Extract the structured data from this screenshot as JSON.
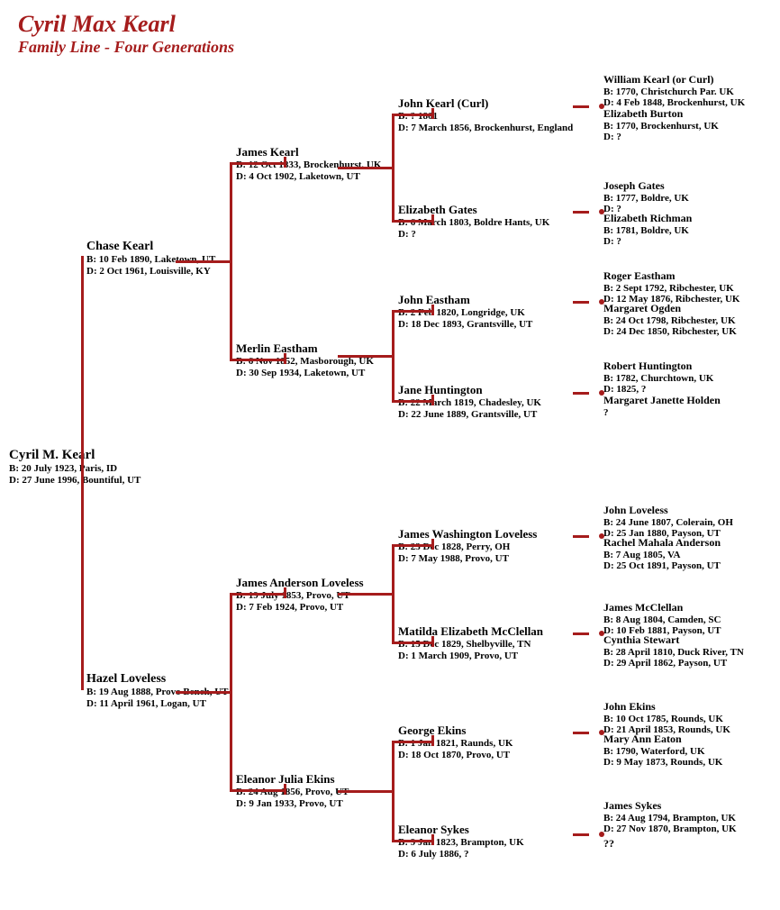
{
  "colors": {
    "accent": "#a51c1c",
    "text": "#000000",
    "bg": "#ffffff"
  },
  "title": {
    "main": "Cyril Max Kearl",
    "sub": "Family Line - Four Generations"
  },
  "tree": {
    "root": {
      "name": "Cyril M. Kearl",
      "birth": "B: 20 July 1923, Paris, ID",
      "death": "D: 27 June 1996, Bountiful, UT"
    },
    "parents": {
      "father": {
        "name": "Chase Kearl",
        "birth": "B: 10 Feb 1890, Laketown, UT",
        "death": "D: 2 Oct 1961, Louisville, KY"
      },
      "mother": {
        "name": "Hazel Loveless",
        "birth": "B: 19 Aug 1888, Provo Bench, UT",
        "death": "D: 11 April 1961, Logan, UT"
      }
    },
    "gp": {
      "pp": {
        "name": "James Kearl",
        "birth": "B: 12 Oct 1833, Brockenhurst, UK",
        "death": "D: 4 Oct 1902, Laketown, UT"
      },
      "pm": {
        "name": "Merlin Eastham",
        "birth": "B: 6 Nov 1852, Masborough, UK",
        "death": "D: 30  Sep 1934, Laketown, UT"
      },
      "mp": {
        "name": "James Anderson Loveless",
        "birth": "B: 19 July 1853, Provo, UT",
        "death": "D: 7 Feb 1924, Provo, UT"
      },
      "mm": {
        "name": "Eleanor Julia Ekins",
        "birth": "B: 24 Aug 1856, Provo, UT",
        "death": "D: 9 Jan 1933, Provo, UT"
      }
    },
    "ggp": {
      "ppp": {
        "name": "John Kearl (Curl)",
        "birth": "B: ? 1801",
        "death": "D: 7  March 1856, Brockenhurst, England"
      },
      "ppm": {
        "name": "Elizabeth Gates",
        "birth": "B: 6 March 1803, Boldre Hants, UK",
        "death": "D: ?"
      },
      "pmp": {
        "name": "John Eastham",
        "birth": "B: 2 Feb 1820, Longridge, UK",
        "death": "D: 18 Dec 1893, Grantsville, UT"
      },
      "pmm": {
        "name": "Jane Huntington",
        "birth": "B: 22 March 1819, Chadesley, UK",
        "death": "D: 22 June 1889, Grantsville, UT"
      },
      "mpp": {
        "name": "James Washington Loveless",
        "birth": "B: 23 Dec 1828, Perry, OH",
        "death": "D: 7 May 1988, Provo, UT"
      },
      "mpm": {
        "name": "Matilda Elizabeth McClellan",
        "birth": "B: 15 Dec 1829, Shelbyville, TN",
        "death": "D: 1 March 1909, Provo, UT"
      },
      "mmp": {
        "name": "George Ekins",
        "birth": "B: 1 Jan 1821, Raunds, UK",
        "death": "D: 18 Oct 1870, Provo, UT"
      },
      "mmm": {
        "name": "Eleanor Sykes",
        "birth": "B: 9 Jan 1823, Brampton, UK",
        "death": "D: 6 July 1886, ?"
      }
    },
    "gggp": {
      "pppp": {
        "name": "William Kearl (or Curl)",
        "birth": "B: 1770, Christchurch Par. UK",
        "death": "D: 4 Feb 1848, Brockenhurst, UK"
      },
      "pppm": {
        "name": "Elizabeth Burton",
        "birth": "B: 1770, Brockenhurst, UK",
        "death": "D: ?"
      },
      "ppmp": {
        "name": "Joseph Gates",
        "birth": "B: 1777, Boldre, UK",
        "death": "D: ?"
      },
      "ppmm": {
        "name": "Elizabeth Richman",
        "birth": "B: 1781, Boldre, UK",
        "death": "D: ?"
      },
      "pmpp": {
        "name": "Roger Eastham",
        "birth": "B: 2 Sept 1792, Ribchester, UK",
        "death": "D: 12 May 1876, Ribchester, UK"
      },
      "pmpm": {
        "name": "Margaret Ogden",
        "birth": "B: 24 Oct 1798, Ribchester, UK",
        "death": "D: 24 Dec 1850, Ribchester, UK"
      },
      "pmmp": {
        "name": "Robert Huntington",
        "birth": "B: 1782, Churchtown, UK",
        "death": "D: 1825, ?"
      },
      "pmmm": {
        "name": "Margaret Janette Holden",
        "birth": "?",
        "death": ""
      },
      "mppp": {
        "name": "John Loveless",
        "birth": "B: 24 June 1807, Colerain, OH",
        "death": "D: 25 Jan 1880, Payson, UT"
      },
      "mppm": {
        "name": "Rachel Mahala Anderson",
        "birth": "B: 7 Aug 1805, VA",
        "death": "D: 25 Oct 1891, Payson, UT"
      },
      "mpmp": {
        "name": "James McClellan",
        "birth": "B: 8 Aug 1804, Camden, SC",
        "death": "D: 10 Feb 1881, Payson, UT"
      },
      "mpmm": {
        "name": "Cynthia Stewart",
        "birth": "B: 28 April 1810, Duck River, TN",
        "death": "D: 29 April 1862, Payson, UT"
      },
      "mmpp": {
        "name": "John Ekins",
        "birth": "B: 10 Oct 1785, Rounds, UK",
        "death": "D: 21 April 1853, Rounds, UK"
      },
      "mmpm": {
        "name": "Mary Ann Eaton",
        "birth": "B: 1790, Waterford, UK",
        "death": "D: 9 May 1873, Rounds, UK"
      },
      "mmmp": {
        "name": "James Sykes",
        "birth": "B: 24 Aug 1794, Brampton, UK",
        "death": "D: 27 Nov 1870, Brampton, UK"
      },
      "mmmm": {
        "name": "??",
        "birth": "",
        "death": ""
      }
    }
  },
  "layout": {
    "col_x": {
      "g1": 10,
      "g2": 96,
      "g3": 262,
      "g4": 442,
      "g5": 670
    },
    "row_y": {
      "root": 497,
      "father": 266,
      "mother": 746,
      "pp": 162,
      "pm": 380,
      "mp": 640,
      "mm": 858,
      "ppp": 108,
      "ppm": 226,
      "pmp": 326,
      "pmm": 426,
      "mpp": 586,
      "mpm": 694,
      "mmp": 804,
      "mmm": 914,
      "pppp": 82,
      "pppm": 120,
      "ppmp": 200,
      "ppmm": 236,
      "pmpp": 300,
      "pmpm": 336,
      "pmmp": 400,
      "pmmm": 438,
      "mppp": 560,
      "mppm": 596,
      "mpmp": 668,
      "mpmm": 704,
      "mmpp": 778,
      "mmpm": 814,
      "mmmp": 888,
      "mmmm": 930
    },
    "line": {
      "g1_hlen": 28,
      "g2_hlen": 60,
      "g3_hlen": 60,
      "g4_hlen": 44,
      "dash_len": 18,
      "g1_vx": 90,
      "g2_vx": 255,
      "g3_vx": 435,
      "g4_vx": 618
    }
  }
}
